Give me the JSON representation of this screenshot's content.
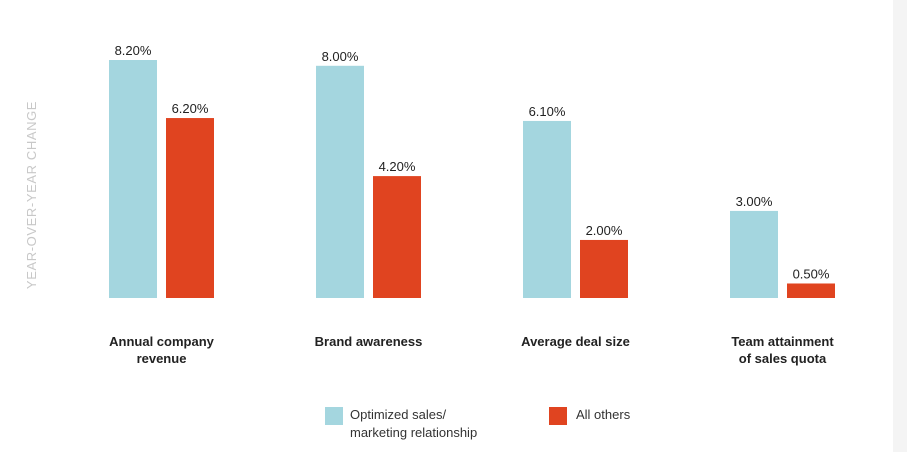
{
  "chart_data": {
    "type": "bar",
    "title": "",
    "xlabel": "",
    "ylabel": "YEAR-OVER-YEAR CHANGE",
    "ylim": [
      0,
      8.2
    ],
    "grid": false,
    "legend_position": "bottom",
    "categories": [
      [
        "Annual company",
        "revenue"
      ],
      [
        "Brand awareness"
      ],
      [
        "Average deal size"
      ],
      [
        "Team attainment",
        "of sales quota"
      ]
    ],
    "series": [
      {
        "name": "Optimized sales/ marketing relationship",
        "legend_lines": [
          "Optimized sales/",
          "marketing relationship"
        ],
        "color": "#a4d6df",
        "values": [
          8.2,
          8.0,
          6.1,
          3.0
        ],
        "labels": [
          "8.20%",
          "8.00%",
          "6.10%",
          "3.00%"
        ]
      },
      {
        "name": "All others",
        "legend_lines": [
          "All others"
        ],
        "color": "#e04420",
        "values": [
          6.2,
          4.2,
          2.0,
          0.5
        ],
        "labels": [
          "6.20%",
          "4.20%",
          "2.00%",
          "0.50%"
        ]
      }
    ]
  },
  "colors": {
    "axis_label": "#c8c8c8",
    "text": "#222222"
  }
}
